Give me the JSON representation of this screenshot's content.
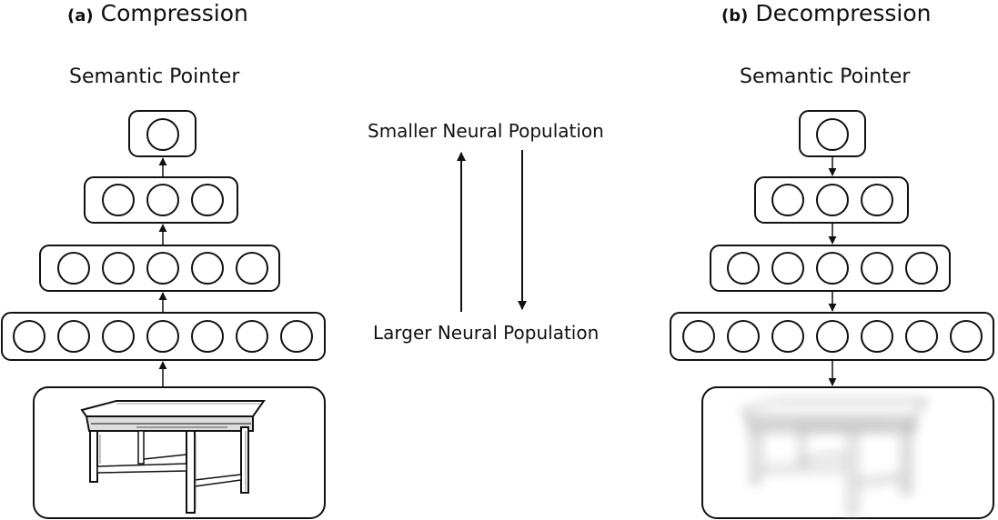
{
  "panel_a": {
    "tag": "(a)",
    "title": "Compression",
    "label": "Semantic Pointer",
    "layers": [
      1,
      3,
      5,
      7
    ],
    "image": "table-drawing"
  },
  "panel_b": {
    "tag": "(b)",
    "title": "Decompression",
    "label": "Semantic Pointer",
    "layers": [
      1,
      3,
      5,
      7
    ],
    "image": "blurred-table-drawing"
  },
  "middle": {
    "smaller_label": "Smaller Neural Population",
    "larger_label": "Larger Neural Population"
  }
}
